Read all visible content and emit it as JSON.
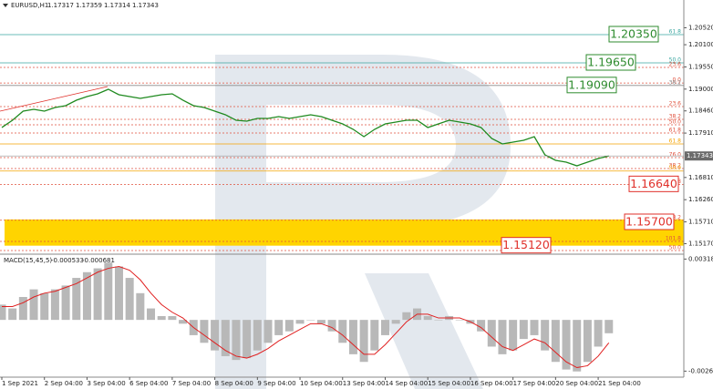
{
  "chart_data": [
    {
      "type": "line",
      "symbol": "EURUSD,H1",
      "ohlc": [
        1.17317,
        1.17359,
        1.17314,
        1.17343
      ],
      "categories": [
        "1 Sep 2021",
        null,
        null,
        null,
        "2 Sep 04:00",
        null,
        null,
        null,
        "3 Sep 04:00",
        null,
        null,
        null,
        "6 Sep 04:00",
        null,
        null,
        null,
        "7 Sep 04:00",
        null,
        null,
        null,
        "8 Sep 04:00",
        null,
        null,
        null,
        "9 Sep 04:00",
        null,
        null,
        null,
        "10 Sep 04:00",
        null,
        null,
        null,
        "13 Sep 04:00",
        null,
        null,
        null,
        "14 Sep 04:00",
        null,
        null,
        null,
        "15 Sep 04:00",
        null,
        null,
        null,
        "16 Sep 04:00",
        null,
        null,
        null,
        "17 Sep 04:00",
        null,
        null,
        null,
        "20 Sep 04:00",
        null,
        null,
        null,
        "21 Sep 04:00",
        null
      ],
      "values": [
        1.18048,
        1.18228,
        1.18454,
        1.18499,
        1.18454,
        1.18544,
        1.18589,
        1.18725,
        1.18815,
        1.18883,
        1.18996,
        1.1886,
        1.18815,
        1.1877,
        1.18815,
        1.1886,
        1.18883,
        1.18725,
        1.18589,
        1.18544,
        1.18454,
        1.18364,
        1.18228,
        1.18206,
        1.18273,
        1.18273,
        1.18318,
        1.18273,
        1.18318,
        1.18364,
        1.18318,
        1.18228,
        1.18138,
        1.18002,
        1.17822,
        1.18002,
        1.18138,
        1.18183,
        1.18228,
        1.18228,
        1.18048,
        1.18138,
        1.18228,
        1.18183,
        1.18138,
        1.18048,
        1.17777,
        1.17641,
        1.17686,
        1.17731,
        1.17822,
        1.1737,
        1.17235,
        1.1719,
        1.17099,
        1.1719,
        1.1728,
        1.17343
      ],
      "color": "#1f8a1f",
      "ylim": [
        1.14932,
        1.21208
      ],
      "yticks": [
        {
          "value": 1.2052,
          "label": "1.20520"
        },
        {
          "value": 1.201,
          "label": "1.20100"
        },
        {
          "value": 1.1955,
          "label": "1.19550"
        },
        {
          "value": 1.19,
          "label": "1.19000"
        },
        {
          "value": 1.1846,
          "label": "1.18460"
        },
        {
          "value": 1.1791,
          "label": "1.17910"
        },
        {
          "value": 1.1681,
          "label": "1.16810"
        },
        {
          "value": 1.1626,
          "label": "1.16260"
        },
        {
          "value": 1.1571,
          "label": "1.15710"
        },
        {
          "value": 1.1517,
          "label": "1.15170"
        }
      ],
      "last_price": 1.17343,
      "zone": [
        1.1512,
        1.1577
      ],
      "zone_color": "#ffd400",
      "fib_lines": [
        {
          "value": 1.2035,
          "label": "61.8",
          "color": "#3aa6a0"
        },
        {
          "value": 1.1965,
          "label": "50.0",
          "color": "#3aa6a0"
        },
        {
          "value": 1.19537,
          "label": "23.6",
          "color": "#e0503c"
        },
        {
          "value": 1.1915,
          "label": "0.0",
          "color": "#e0503c"
        },
        {
          "value": 1.1909,
          "label": "38.2",
          "color": "#8a8a8a"
        },
        {
          "value": 1.18567,
          "label": "23.6",
          "color": "#e0503c"
        },
        {
          "value": 1.1825,
          "label": "38.2",
          "color": "#e0503c"
        },
        {
          "value": 1.18115,
          "label": "50.0",
          "color": "#e0503c"
        },
        {
          "value": 1.17912,
          "label": "61.8",
          "color": "#e0503c"
        },
        {
          "value": 1.17641,
          "label": "61.8",
          "color": "#f4a300"
        },
        {
          "value": 1.17303,
          "label": "76.0",
          "color": "#e0503c"
        },
        {
          "value": 1.17032,
          "label": "38.2",
          "color": "#e0503c"
        },
        {
          "value": 1.1697,
          "label": "50.0",
          "color": "#f4a300"
        },
        {
          "value": 1.1664,
          "label": "61.8",
          "color": "#e0503c"
        },
        {
          "value": 1.1575,
          "label": "38.2",
          "color": "#e0503c"
        },
        {
          "value": 1.15226,
          "label": "101.8",
          "color": "#e0503c"
        },
        {
          "value": 1.15,
          "label": "50.0",
          "color": "#e0503c"
        }
      ],
      "level_boxes": [
        {
          "value": 1.2035,
          "label": "1.20350",
          "color": "#2e8b2e"
        },
        {
          "value": 1.1965,
          "label": "1.19650",
          "color": "#2e8b2e"
        },
        {
          "value": 1.1909,
          "label": "1.19090",
          "color": "#2e8b2e"
        },
        {
          "value": 1.1664,
          "label": "1.16640",
          "color": "#e0302a"
        },
        {
          "value": 1.157,
          "label": "1.15700",
          "color": "#e0302a"
        },
        {
          "value": 1.1512,
          "label": "1.15120",
          "color": "#e0302a"
        }
      ]
    },
    {
      "type": "macd",
      "title": "MACD(15,45,5)",
      "readings": [
        -0.000533,
        -0.000681
      ],
      "values": [
        0.0008,
        0.0006,
        0.0012,
        0.0016,
        0.0014,
        0.0016,
        0.0018,
        0.0022,
        0.0025,
        0.0027,
        0.003,
        0.0028,
        0.0022,
        0.0014,
        0.0006,
        0.0002,
        0.0002,
        -0.0002,
        -0.0008,
        -0.0012,
        -0.0016,
        -0.0019,
        -0.0021,
        -0.002,
        -0.0016,
        -0.0012,
        -0.0008,
        -0.0006,
        -0.0002,
        0,
        -0.0002,
        -0.0006,
        -0.0012,
        -0.0018,
        -0.0022,
        -0.0016,
        -0.0008,
        -0.0002,
        0.0004,
        0.0006,
        0.0002,
        0,
        0.0002,
        0,
        -0.0002,
        -0.0006,
        -0.0014,
        -0.0018,
        -0.0016,
        -0.001,
        -0.0008,
        -0.0016,
        -0.0022,
        -0.0026,
        -0.0027,
        -0.0022,
        -0.0014,
        -0.0007
      ],
      "color": "#b8b8b8",
      "signal": [
        0.0007,
        0.0007,
        0.0009,
        0.0012,
        0.0014,
        0.0015,
        0.0017,
        0.0019,
        0.0022,
        0.0025,
        0.0027,
        0.0028,
        0.0026,
        0.0021,
        0.0014,
        0.0008,
        0.0004,
        0.0001,
        -0.0004,
        -0.0008,
        -0.0012,
        -0.0016,
        -0.0019,
        -0.002,
        -0.0018,
        -0.0015,
        -0.0011,
        -0.0008,
        -0.0005,
        -0.0002,
        -0.0002,
        -0.0004,
        -0.0008,
        -0.0013,
        -0.0018,
        -0.0018,
        -0.0013,
        -0.0007,
        -0.0001,
        0.0003,
        0.0003,
        0.0001,
        0.0001,
        0.0001,
        -0.0001,
        -0.0004,
        -0.0009,
        -0.0014,
        -0.0016,
        -0.0013,
        -0.001,
        -0.0012,
        -0.0017,
        -0.0022,
        -0.0025,
        -0.0024,
        -0.0019,
        -0.0012
      ],
      "signal_color": "#e02020",
      "ylim": [
        -0.003,
        0.0033
      ],
      "yticks": [
        0.003187,
        -0.002684
      ]
    }
  ]
}
